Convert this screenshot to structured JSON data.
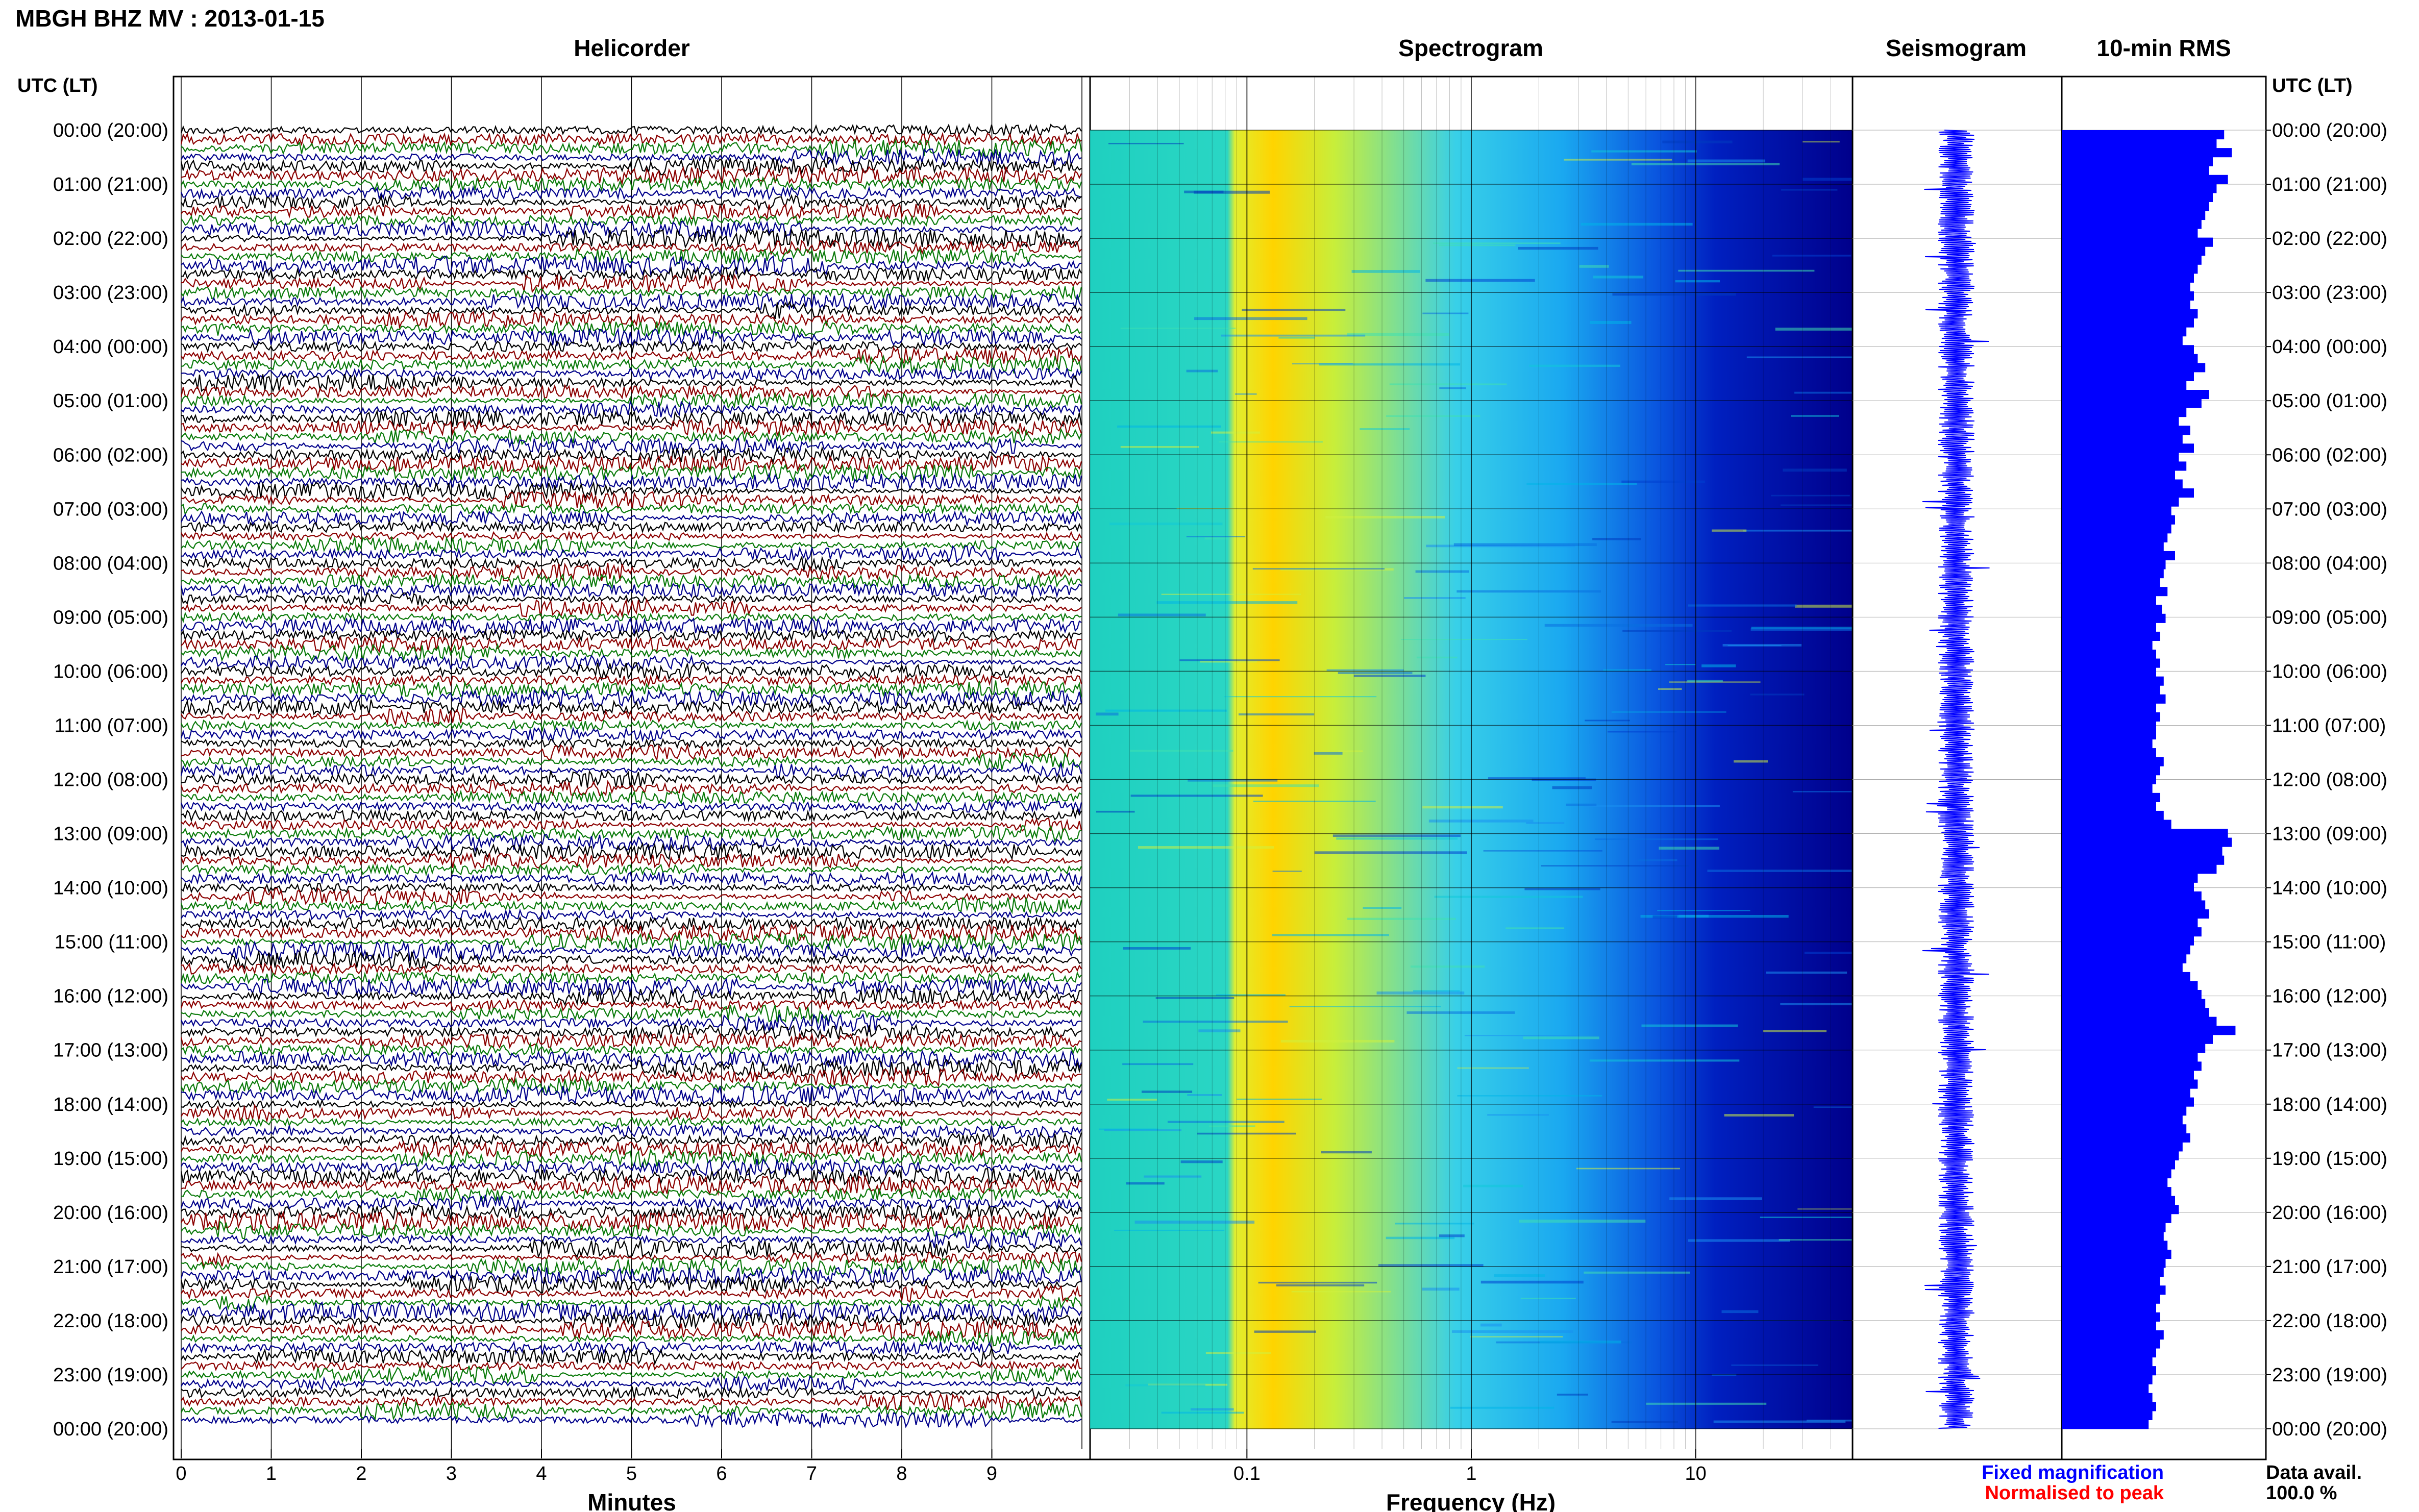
{
  "header": {
    "title": "MBGH BHZ MV : 2013-01-15"
  },
  "panels": {
    "helicorder": "Helicorder",
    "spectrogram": "Spectrogram",
    "seismogram": "Seismogram",
    "rms": "10-min RMS"
  },
  "axis": {
    "left_header": "UTC (LT)",
    "right_header": "UTC (LT)",
    "minutes_label": "Minutes",
    "frequency_label": "Frequency (Hz)"
  },
  "legend": {
    "fixed": "Fixed magnification",
    "normalised": "Normalised to peak",
    "data_avail_label": "Data avail.",
    "data_avail_value": "100.0 %"
  },
  "colors": {
    "trace_cycle": [
      "#000000",
      "#8b0000",
      "#0a7a0a",
      "#00008b"
    ],
    "seismogram": "#0000ff",
    "rms": "#0000ff",
    "fixed_legend": "#0000ff",
    "normalised_legend": "#ff0000",
    "spectro_low": "#00008b",
    "spectro_high": "#ffff00"
  },
  "chart_data": {
    "type": "heatmap",
    "time_labels": [
      "00:00 (20:00)",
      "01:00 (21:00)",
      "02:00 (22:00)",
      "03:00 (23:00)",
      "04:00 (00:00)",
      "05:00 (01:00)",
      "06:00 (02:00)",
      "07:00 (03:00)",
      "08:00 (04:00)",
      "09:00 (05:00)",
      "10:00 (06:00)",
      "11:00 (07:00)",
      "12:00 (08:00)",
      "13:00 (09:00)",
      "14:00 (10:00)",
      "15:00 (11:00)",
      "16:00 (12:00)",
      "17:00 (13:00)",
      "18:00 (14:00)",
      "19:00 (15:00)",
      "20:00 (16:00)",
      "21:00 (17:00)",
      "22:00 (18:00)",
      "23:00 (19:00)",
      "00:00 (20:00)"
    ],
    "minutes_ticks": [
      "0",
      "1",
      "2",
      "3",
      "4",
      "5",
      "6",
      "7",
      "8",
      "9"
    ],
    "minutes_range": [
      0,
      10
    ],
    "frequency_ticks": [
      0.1,
      1,
      10
    ],
    "frequency_tick_labels": [
      "0.1",
      "1",
      "10"
    ],
    "frequency_range": [
      0.02,
      50
    ],
    "frequency_scale": "log",
    "rms_values": [
      0.86,
      0.82,
      0.9,
      0.8,
      0.78,
      0.88,
      0.82,
      0.8,
      0.78,
      0.76,
      0.74,
      0.72,
      0.8,
      0.76,
      0.74,
      0.72,
      0.7,
      0.68,
      0.7,
      0.68,
      0.72,
      0.7,
      0.66,
      0.64,
      0.7,
      0.72,
      0.76,
      0.7,
      0.66,
      0.78,
      0.74,
      0.66,
      0.62,
      0.68,
      0.64,
      0.7,
      0.62,
      0.66,
      0.6,
      0.64,
      0.7,
      0.62,
      0.58,
      0.6,
      0.58,
      0.56,
      0.54,
      0.6,
      0.55,
      0.54,
      0.52,
      0.56,
      0.5,
      0.53,
      0.55,
      0.5,
      0.52,
      0.48,
      0.5,
      0.52,
      0.5,
      0.54,
      0.52,
      0.55,
      0.5,
      0.52,
      0.5,
      0.5,
      0.48,
      0.5,
      0.54,
      0.52,
      0.5,
      0.48,
      0.52,
      0.5,
      0.54,
      0.58,
      0.88,
      0.9,
      0.85,
      0.86,
      0.82,
      0.72,
      0.7,
      0.74,
      0.76,
      0.78,
      0.72,
      0.74,
      0.7,
      0.68,
      0.66,
      0.64,
      0.68,
      0.72,
      0.74,
      0.76,
      0.78,
      0.82,
      0.92,
      0.8,
      0.76,
      0.72,
      0.74,
      0.7,
      0.72,
      0.68,
      0.7,
      0.66,
      0.64,
      0.66,
      0.68,
      0.64,
      0.62,
      0.6,
      0.58,
      0.56,
      0.58,
      0.6,
      0.62,
      0.58,
      0.55,
      0.54,
      0.56,
      0.58,
      0.55,
      0.54,
      0.52,
      0.55,
      0.52,
      0.5,
      0.52,
      0.5,
      0.54,
      0.52,
      0.5,
      0.48,
      0.5,
      0.48,
      0.46,
      0.48,
      0.5,
      0.48,
      0.46
    ]
  }
}
